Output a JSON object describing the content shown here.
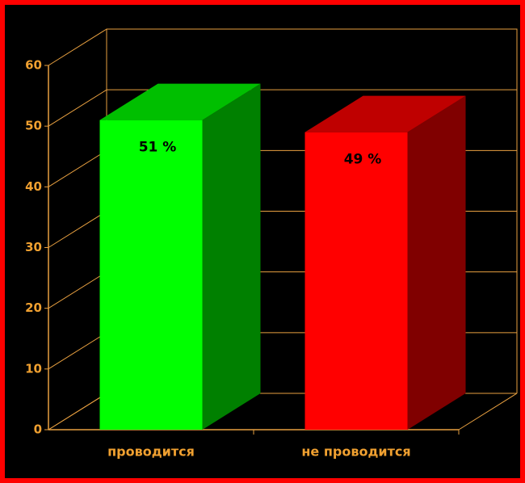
{
  "chart_data": {
    "type": "bar3d",
    "categories": [
      "проводится",
      "не проводится"
    ],
    "values": [
      51,
      49
    ],
    "value_labels": [
      "51 %",
      "49 %"
    ],
    "colors": [
      "#00ff00",
      "#ff0000"
    ],
    "ylim": [
      0,
      60
    ],
    "yticks": [
      0,
      10,
      20,
      30,
      40,
      50,
      60
    ],
    "grid": true
  }
}
